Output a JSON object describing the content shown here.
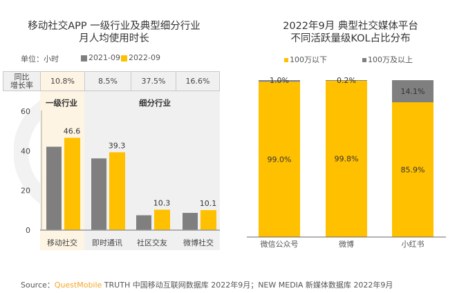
{
  "left_title": [
    "移动社交APP 一级行业及典型细分行业",
    "月人均使用时长"
  ],
  "right_title": [
    "2022年9月 典型社交媒体平台",
    "不同活跃量级KOL占比分布"
  ],
  "unit": "单位：小时",
  "yoy_label": "同比\n增长率",
  "group_labels": {
    "primary": "一级行业",
    "sub": "细分行业"
  },
  "source": {
    "prefix": "Source：",
    "brand": "QuestMobile",
    "text": " TRUTH 中国移动互联网数据库 2022年9月；NEW MEDIA 新媒体数据库 2022年9月"
  },
  "colors": {
    "gray": "#7f7f7f",
    "yellow": "#ffc000",
    "brand": "#f5a623",
    "highlight": "#fdf4e3",
    "panel": "#f0f0f0"
  },
  "chart_data": [
    {
      "type": "bar",
      "categories": [
        "移动社交",
        "即时通讯",
        "社区交友",
        "微博社交"
      ],
      "series": [
        {
          "name": "2021-09",
          "values": [
            42.1,
            36.2,
            7.5,
            8.7
          ]
        },
        {
          "name": "2022-09",
          "values": [
            46.6,
            39.3,
            10.3,
            10.1
          ]
        }
      ],
      "data_labels": [
        "46.6",
        "39.3",
        "10.3",
        "10.1"
      ],
      "yoy": [
        "10.8%",
        "8.5%",
        "37.5%",
        "16.6%"
      ],
      "yticks": [
        "0",
        "20",
        "40",
        "60"
      ],
      "ylim": [
        0,
        60
      ],
      "legend": "top"
    },
    {
      "type": "bar",
      "stacked": true,
      "percent": true,
      "categories": [
        "微信公众号",
        "微博",
        "小红书"
      ],
      "series": [
        {
          "name": "100万以下",
          "values": [
            99.0,
            99.8,
            85.9
          ],
          "labels": [
            "99.0%",
            "99.8%",
            "85.9%"
          ]
        },
        {
          "name": "100万及以上",
          "values": [
            1.0,
            0.2,
            14.1
          ],
          "labels": [
            "1.0%",
            "0.2%",
            "14.1%"
          ]
        }
      ],
      "ylim": [
        0,
        100
      ],
      "legend": "top"
    }
  ]
}
